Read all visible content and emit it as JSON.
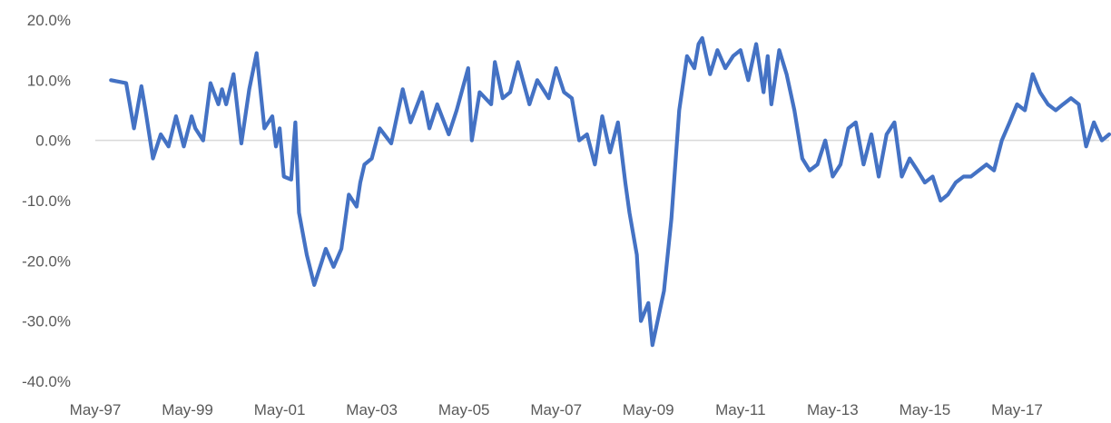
{
  "chart_data": {
    "type": "line",
    "title": "",
    "xlabel": "",
    "ylabel": "",
    "ylim": [
      -0.4,
      0.2
    ],
    "y_ticks": [
      0.2,
      0.1,
      0.0,
      -0.1,
      -0.2,
      -0.3,
      -0.4
    ],
    "y_tick_labels": [
      "20.0%",
      "10.0%",
      "0.0%",
      "-10.0%",
      "-20.0%",
      "-30.0%",
      "-40.0%"
    ],
    "x_tick_labels": [
      "May-97",
      "May-99",
      "May-01",
      "May-03",
      "May-05",
      "May-07",
      "May-09",
      "May-11",
      "May-13",
      "May-15",
      "May-17"
    ],
    "x_tick_positions": [
      1997.33,
      1999.33,
      2001.33,
      2003.33,
      2005.33,
      2007.33,
      2009.33,
      2011.33,
      2013.33,
      2015.33,
      2017.33
    ],
    "x_range": [
      1997.33,
      2019.33
    ],
    "grid": false,
    "legend": "none",
    "series_color": "#4472c4",
    "series": [
      {
        "x": [
          1997.67,
          1998.0,
          1998.17,
          1998.33,
          1998.42,
          1998.58,
          1998.75,
          1998.92,
          1999.08,
          1999.25,
          1999.42,
          1999.5,
          1999.67,
          1999.83,
          2000.0,
          2000.08,
          2000.17,
          2000.33,
          2000.5,
          2000.67,
          2000.83,
          2001.0,
          2001.17,
          2001.25,
          2001.33,
          2001.42,
          2001.58,
          2001.67,
          2001.75,
          2001.92,
          2002.08,
          2002.25,
          2002.33,
          2002.5,
          2002.67,
          2002.83,
          2003.0,
          2003.08,
          2003.17,
          2003.33,
          2003.5,
          2003.75,
          2004.0,
          2004.17,
          2004.42,
          2004.58,
          2004.75,
          2005.0,
          2005.17,
          2005.42,
          2005.5,
          2005.67,
          2005.92,
          2006.0,
          2006.17,
          2006.33,
          2006.5,
          2006.75,
          2006.92,
          2007.17,
          2007.33,
          2007.5,
          2007.67,
          2007.83,
          2008.0,
          2008.17,
          2008.33,
          2008.5,
          2008.67,
          2008.83,
          2008.92,
          2009.08,
          2009.17,
          2009.33,
          2009.42,
          2009.67,
          2009.83,
          2010.0,
          2010.17,
          2010.33,
          2010.42,
          2010.5,
          2010.67,
          2010.83,
          2011.0,
          2011.17,
          2011.33,
          2011.5,
          2011.67,
          2011.83,
          2011.92,
          2012.0,
          2012.17,
          2012.33,
          2012.5,
          2012.67,
          2012.83,
          2013.0,
          2013.17,
          2013.33,
          2013.5,
          2013.67,
          2013.83,
          2014.0,
          2014.17,
          2014.33,
          2014.5,
          2014.67,
          2014.83,
          2015.0,
          2015.17,
          2015.33,
          2015.5,
          2015.67,
          2015.83,
          2016.0,
          2016.17,
          2016.33,
          2016.5,
          2016.67,
          2016.83,
          2017.0,
          2017.17,
          2017.33,
          2017.5,
          2017.67,
          2017.83,
          2018.0,
          2018.17,
          2018.33,
          2018.5,
          2018.67,
          2018.83,
          2019.0,
          2019.17,
          2019.33
        ],
        "values": [
          0.1,
          0.095,
          0.02,
          0.09,
          0.05,
          -0.03,
          0.01,
          -0.01,
          0.04,
          -0.01,
          0.04,
          0.02,
          0.0,
          0.095,
          0.06,
          0.085,
          0.06,
          0.11,
          -0.005,
          0.085,
          0.145,
          0.02,
          0.04,
          -0.01,
          0.02,
          -0.06,
          -0.065,
          0.03,
          -0.12,
          -0.19,
          -0.24,
          -0.2,
          -0.18,
          -0.21,
          -0.18,
          -0.09,
          -0.11,
          -0.07,
          -0.04,
          -0.03,
          0.02,
          -0.005,
          0.085,
          0.03,
          0.08,
          0.02,
          0.06,
          0.01,
          0.05,
          0.12,
          0.0,
          0.08,
          0.06,
          0.13,
          0.07,
          0.08,
          0.13,
          0.06,
          0.1,
          0.07,
          0.12,
          0.08,
          0.07,
          0.0,
          0.01,
          -0.04,
          0.04,
          -0.02,
          0.03,
          -0.07,
          -0.12,
          -0.19,
          -0.3,
          -0.27,
          -0.34,
          -0.25,
          -0.13,
          0.05,
          0.14,
          0.12,
          0.16,
          0.17,
          0.11,
          0.15,
          0.12,
          0.14,
          0.15,
          0.1,
          0.16,
          0.08,
          0.14,
          0.06,
          0.15,
          0.11,
          0.05,
          -0.03,
          -0.05,
          -0.04,
          0.0,
          -0.06,
          -0.04,
          0.02,
          0.03,
          -0.04,
          0.01,
          -0.06,
          0.01,
          0.03,
          -0.06,
          -0.03,
          -0.05,
          -0.07,
          -0.06,
          -0.1,
          -0.09,
          -0.07,
          -0.06,
          -0.06,
          -0.05,
          -0.04,
          -0.05,
          0.0,
          0.03,
          0.06,
          0.05,
          0.11,
          0.08,
          0.06,
          0.05,
          0.06,
          0.07,
          0.06,
          -0.01,
          0.03,
          0.0,
          0.01
        ]
      }
    ]
  }
}
